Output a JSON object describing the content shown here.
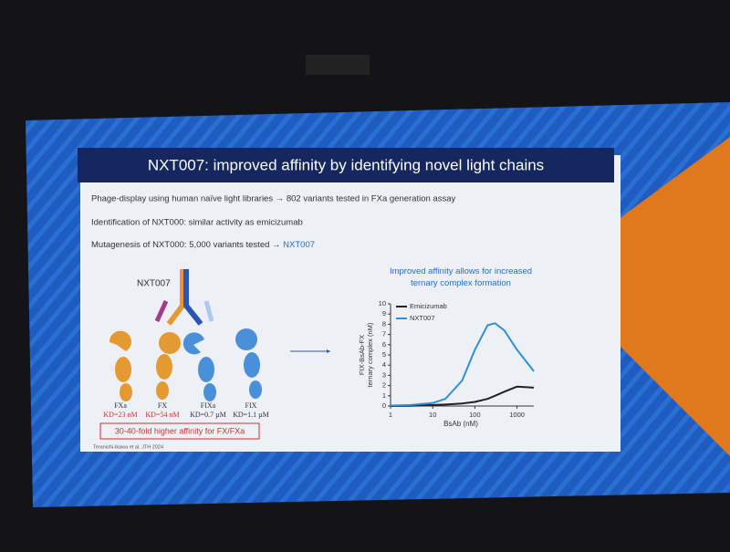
{
  "slide": {
    "title": "NXT007: improved affinity by identifying novel light chains",
    "bullets": [
      {
        "text": "Phage-display using human naïve light libraries → 802 variants tested in FXa generation assay"
      },
      {
        "text": "Identification of NXT000: similar activity as emicizumab"
      },
      {
        "text": "Mutagenesis of NXT000: 5,000 variants tested → ",
        "highlight": "NXT007"
      }
    ],
    "diagram": {
      "antibody": "NXT007",
      "proteins": [
        {
          "name": "FXa",
          "kd": "KD=23 nM"
        },
        {
          "name": "FX",
          "kd": "KD=54 nM"
        },
        {
          "name": "FIXa",
          "kd": "KD=0.7 µM"
        },
        {
          "name": "FIX",
          "kd": "KD=1.1 µM"
        }
      ],
      "callout": "30-40-fold higher affinity for FX/FXa",
      "citation": "Teranishi-Ikawa et al. JTH 2024"
    }
  },
  "chart_data": {
    "type": "line",
    "title": "Improved affinity allows for increased ternary complex formation",
    "y_label": [
      "FIX-BsAb-FX",
      "ternary complex (nM)"
    ],
    "x_label": "BsAb (nM)",
    "x": [
      1,
      3,
      10,
      20,
      50,
      100,
      200,
      300,
      500,
      1000,
      2500
    ],
    "series": [
      {
        "name": "Emicizumab",
        "color": "#222222",
        "values": [
          0,
          0.02,
          0.1,
          0.15,
          0.25,
          0.4,
          0.7,
          1.0,
          1.4,
          1.9,
          1.8
        ]
      },
      {
        "name": "NXT007",
        "color": "#2f8fd8",
        "values": [
          0.05,
          0.1,
          0.3,
          0.7,
          2.5,
          5.5,
          7.9,
          8.1,
          7.4,
          5.5,
          3.4
        ]
      }
    ],
    "xlim": [
      1,
      2500
    ],
    "xticks": [
      1,
      10,
      100,
      1000
    ],
    "x_log": true,
    "ylim": [
      0,
      10
    ],
    "yticks": [
      0,
      1,
      2,
      3,
      4,
      5,
      6,
      7,
      8,
      9,
      10
    ],
    "legend": "top-left"
  }
}
